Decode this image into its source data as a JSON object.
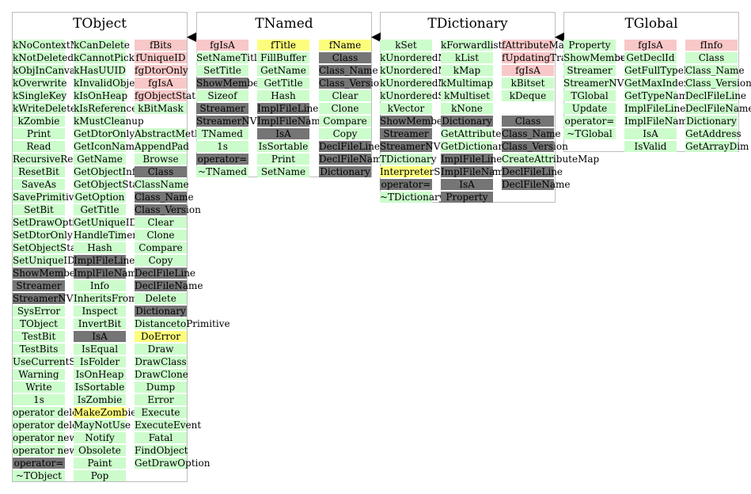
{
  "classes": [
    {
      "name": "TObject",
      "columns": [
        [
          {
            "t": "kNoContextMenu",
            "c": "green"
          },
          {
            "t": "kNotDeleted",
            "c": "green"
          },
          {
            "t": "kObjInCanvas",
            "c": "green"
          },
          {
            "t": "kOverwrite",
            "c": "green"
          },
          {
            "t": "kSingleKey",
            "c": "green"
          },
          {
            "t": "kWriteDelete",
            "c": "green"
          },
          {
            "t": "kZombie",
            "c": "green"
          },
          {
            "t": "Print",
            "c": "green"
          },
          {
            "t": "Read",
            "c": "green"
          },
          {
            "t": "RecursiveRemove",
            "c": "green"
          },
          {
            "t": "ResetBit",
            "c": "green"
          },
          {
            "t": "SaveAs",
            "c": "green"
          },
          {
            "t": "SavePrimitive",
            "c": "green"
          },
          {
            "t": "SetBit",
            "c": "green"
          },
          {
            "t": "SetDrawOption",
            "c": "green"
          },
          {
            "t": "SetDtorOnly",
            "c": "green"
          },
          {
            "t": "SetObjectStat",
            "c": "green"
          },
          {
            "t": "SetUniqueID",
            "c": "green"
          },
          {
            "t": "ShowMembers",
            "c": "gray"
          },
          {
            "t": "Streamer",
            "c": "gray"
          },
          {
            "t": "StreamerNVirtual",
            "c": "gray"
          },
          {
            "t": "SysError",
            "c": "green"
          },
          {
            "t": "TObject",
            "c": "green"
          },
          {
            "t": "TestBit",
            "c": "green"
          },
          {
            "t": "TestBits",
            "c": "green"
          },
          {
            "t": "UseCurrentStyle",
            "c": "green"
          },
          {
            "t": "Warning",
            "c": "green"
          },
          {
            "t": "Write",
            "c": "green"
          },
          {
            "t": "1s",
            "c": "green"
          },
          {
            "t": "operator delete",
            "c": "green"
          },
          {
            "t": "operator delete[]",
            "c": "green"
          },
          {
            "t": "operator new",
            "c": "green"
          },
          {
            "t": "operator new[]",
            "c": "green"
          },
          {
            "t": "operator=",
            "c": "gray"
          },
          {
            "t": "~TObject",
            "c": "green"
          }
        ],
        [
          {
            "t": "kCanDelete",
            "c": "green"
          },
          {
            "t": "kCannotPick",
            "c": "green"
          },
          {
            "t": "kHasUUID",
            "c": "green"
          },
          {
            "t": "kInvalidObject",
            "c": "green"
          },
          {
            "t": "kIsOnHeap",
            "c": "green"
          },
          {
            "t": "kIsReferenced",
            "c": "green"
          },
          {
            "t": "kMustCleanup",
            "c": "green"
          },
          {
            "t": "GetDtorOnly",
            "c": "green"
          },
          {
            "t": "GetIconName",
            "c": "green"
          },
          {
            "t": "GetName",
            "c": "green"
          },
          {
            "t": "GetObjectInfo",
            "c": "green"
          },
          {
            "t": "GetObjectStat",
            "c": "green"
          },
          {
            "t": "GetOption",
            "c": "green"
          },
          {
            "t": "GetTitle",
            "c": "green"
          },
          {
            "t": "GetUniqueID",
            "c": "green"
          },
          {
            "t": "HandleTimer",
            "c": "green"
          },
          {
            "t": "Hash",
            "c": "green"
          },
          {
            "t": "ImplFileLine",
            "c": "gray"
          },
          {
            "t": "ImplFileName",
            "c": "gray"
          },
          {
            "t": "Info",
            "c": "green"
          },
          {
            "t": "InheritsFrom",
            "c": "green"
          },
          {
            "t": "Inspect",
            "c": "green"
          },
          {
            "t": "InvertBit",
            "c": "green"
          },
          {
            "t": "IsA",
            "c": "gray"
          },
          {
            "t": "IsEqual",
            "c": "green"
          },
          {
            "t": "IsFolder",
            "c": "green"
          },
          {
            "t": "IsOnHeap",
            "c": "green"
          },
          {
            "t": "IsSortable",
            "c": "green"
          },
          {
            "t": "IsZombie",
            "c": "green"
          },
          {
            "t": "MakeZombie",
            "c": "yellow"
          },
          {
            "t": "MayNotUse",
            "c": "green"
          },
          {
            "t": "Notify",
            "c": "green"
          },
          {
            "t": "Obsolete",
            "c": "green"
          },
          {
            "t": "Paint",
            "c": "green"
          },
          {
            "t": "Pop",
            "c": "green"
          }
        ],
        [
          {
            "t": "fBits",
            "c": "pink"
          },
          {
            "t": "fUniqueID",
            "c": "pink"
          },
          {
            "t": "fgDtorOnly",
            "c": "pink"
          },
          {
            "t": "fgIsA",
            "c": "pink"
          },
          {
            "t": "fgObjectStat",
            "c": "pink"
          },
          {
            "t": "kBitMask",
            "c": "green"
          },
          {
            "t": "",
            "c": "none"
          },
          {
            "t": "AbstractMethod",
            "c": "green"
          },
          {
            "t": "AppendPad",
            "c": "green"
          },
          {
            "t": "Browse",
            "c": "green"
          },
          {
            "t": "Class",
            "c": "gray"
          },
          {
            "t": "ClassName",
            "c": "green"
          },
          {
            "t": "Class_Name",
            "c": "gray"
          },
          {
            "t": "Class_Version",
            "c": "gray"
          },
          {
            "t": "Clear",
            "c": "green"
          },
          {
            "t": "Clone",
            "c": "green"
          },
          {
            "t": "Compare",
            "c": "green"
          },
          {
            "t": "Copy",
            "c": "green"
          },
          {
            "t": "DeclFileLine",
            "c": "gray"
          },
          {
            "t": "DeclFileName",
            "c": "gray"
          },
          {
            "t": "Delete",
            "c": "green"
          },
          {
            "t": "Dictionary",
            "c": "gray"
          },
          {
            "t": "DistancetoPrimitive",
            "c": "green"
          },
          {
            "t": "DoError",
            "c": "yellow"
          },
          {
            "t": "Draw",
            "c": "green"
          },
          {
            "t": "DrawClass",
            "c": "green"
          },
          {
            "t": "DrawClone",
            "c": "green"
          },
          {
            "t": "Dump",
            "c": "green"
          },
          {
            "t": "Error",
            "c": "green"
          },
          {
            "t": "Execute",
            "c": "green"
          },
          {
            "t": "ExecuteEvent",
            "c": "green"
          },
          {
            "t": "Fatal",
            "c": "green"
          },
          {
            "t": "FindObject",
            "c": "green"
          },
          {
            "t": "GetDrawOption",
            "c": "green"
          }
        ]
      ]
    },
    {
      "name": "TNamed",
      "columns": [
        [
          {
            "t": "fgIsA",
            "c": "pink"
          },
          {
            "t": "SetNameTitle",
            "c": "green"
          },
          {
            "t": "SetTitle",
            "c": "green"
          },
          {
            "t": "ShowMembers",
            "c": "gray"
          },
          {
            "t": "Sizeof",
            "c": "green"
          },
          {
            "t": "Streamer",
            "c": "gray"
          },
          {
            "t": "StreamerNVirtual",
            "c": "gray"
          },
          {
            "t": "TNamed",
            "c": "green"
          },
          {
            "t": "1s",
            "c": "green"
          },
          {
            "t": "operator=",
            "c": "gray"
          },
          {
            "t": "~TNamed",
            "c": "green"
          }
        ],
        [
          {
            "t": "fTitle",
            "c": "yellow"
          },
          {
            "t": "FillBuffer",
            "c": "green"
          },
          {
            "t": "GetName",
            "c": "green"
          },
          {
            "t": "GetTitle",
            "c": "green"
          },
          {
            "t": "Hash",
            "c": "green"
          },
          {
            "t": "ImplFileLine",
            "c": "gray"
          },
          {
            "t": "ImplFileName",
            "c": "gray"
          },
          {
            "t": "IsA",
            "c": "gray"
          },
          {
            "t": "IsSortable",
            "c": "green"
          },
          {
            "t": "Print",
            "c": "green"
          },
          {
            "t": "SetName",
            "c": "green"
          }
        ],
        [
          {
            "t": "fName",
            "c": "yellow"
          },
          {
            "t": "Class",
            "c": "gray"
          },
          {
            "t": "Class_Name",
            "c": "gray"
          },
          {
            "t": "Class_Version",
            "c": "gray"
          },
          {
            "t": "Clear",
            "c": "green"
          },
          {
            "t": "Clone",
            "c": "green"
          },
          {
            "t": "Compare",
            "c": "green"
          },
          {
            "t": "Copy",
            "c": "green"
          },
          {
            "t": "DeclFileLine",
            "c": "gray"
          },
          {
            "t": "DeclFileName",
            "c": "gray"
          },
          {
            "t": "Dictionary",
            "c": "gray"
          }
        ]
      ]
    },
    {
      "name": "TDictionary",
      "columns": [
        [
          {
            "t": "kSet",
            "c": "green"
          },
          {
            "t": "kUnorderedMap",
            "c": "green"
          },
          {
            "t": "kUnorderedMultimap",
            "c": "green"
          },
          {
            "t": "kUnorderedMultiset",
            "c": "green"
          },
          {
            "t": "kUnorderedSet",
            "c": "green"
          },
          {
            "t": "kVector",
            "c": "green"
          },
          {
            "t": "ShowMembers",
            "c": "gray"
          },
          {
            "t": "Streamer",
            "c": "gray"
          },
          {
            "t": "StreamerNVirtual",
            "c": "gray"
          },
          {
            "t": "TDictionary",
            "c": "green"
          },
          {
            "t": "InterpreterStateMarker",
            "c": "yellow"
          },
          {
            "t": "operator=",
            "c": "gray"
          },
          {
            "t": "~TDictionary",
            "c": "green"
          }
        ],
        [
          {
            "t": "kForwardlist",
            "c": "green"
          },
          {
            "t": "kList",
            "c": "green"
          },
          {
            "t": "kMap",
            "c": "green"
          },
          {
            "t": "kMultimap",
            "c": "green"
          },
          {
            "t": "kMultiset",
            "c": "green"
          },
          {
            "t": "kNone",
            "c": "green"
          },
          {
            "t": "Dictionary",
            "c": "gray"
          },
          {
            "t": "GetAttributeMap",
            "c": "green"
          },
          {
            "t": "GetDictionary",
            "c": "green"
          },
          {
            "t": "ImplFileLine",
            "c": "gray"
          },
          {
            "t": "ImplFileName",
            "c": "gray"
          },
          {
            "t": "IsA",
            "c": "gray"
          },
          {
            "t": "Property",
            "c": "gray"
          }
        ],
        [
          {
            "t": "fAttributeMap",
            "c": "pink"
          },
          {
            "t": "fUpdatingTransactionCount",
            "c": "pink"
          },
          {
            "t": "fgIsA",
            "c": "pink"
          },
          {
            "t": "kBitset",
            "c": "green"
          },
          {
            "t": "kDeque",
            "c": "green"
          },
          {
            "t": "",
            "c": "none"
          },
          {
            "t": "Class",
            "c": "gray"
          },
          {
            "t": "Class_Name",
            "c": "gray"
          },
          {
            "t": "Class_Version",
            "c": "gray"
          },
          {
            "t": "CreateAttributeMap",
            "c": "green"
          },
          {
            "t": "DeclFileLine",
            "c": "gray"
          },
          {
            "t": "DeclFileName",
            "c": "gray"
          }
        ]
      ]
    },
    {
      "name": "TGlobal",
      "columns": [
        [
          {
            "t": "Property",
            "c": "green"
          },
          {
            "t": "ShowMembers",
            "c": "green"
          },
          {
            "t": "Streamer",
            "c": "green"
          },
          {
            "t": "StreamerNVirtual",
            "c": "green"
          },
          {
            "t": "TGlobal",
            "c": "green"
          },
          {
            "t": "Update",
            "c": "green"
          },
          {
            "t": "operator=",
            "c": "green"
          },
          {
            "t": "~TGlobal",
            "c": "green"
          }
        ],
        [
          {
            "t": "fgIsA",
            "c": "pink"
          },
          {
            "t": "GetDeclId",
            "c": "green"
          },
          {
            "t": "GetFullTypeName",
            "c": "green"
          },
          {
            "t": "GetMaxIndex",
            "c": "green"
          },
          {
            "t": "GetTypeName",
            "c": "green"
          },
          {
            "t": "ImplFileLine",
            "c": "green"
          },
          {
            "t": "ImplFileName",
            "c": "green"
          },
          {
            "t": "IsA",
            "c": "green"
          },
          {
            "t": "IsValid",
            "c": "green"
          }
        ],
        [
          {
            "t": "fInfo",
            "c": "pink"
          },
          {
            "t": "Class",
            "c": "green"
          },
          {
            "t": "Class_Name",
            "c": "green"
          },
          {
            "t": "Class_Version",
            "c": "green"
          },
          {
            "t": "DeclFileLine",
            "c": "green"
          },
          {
            "t": "DeclFileName",
            "c": "green"
          },
          {
            "t": "Dictionary",
            "c": "green"
          },
          {
            "t": "GetAddress",
            "c": "green"
          },
          {
            "t": "GetArrayDim",
            "c": "green"
          }
        ]
      ]
    }
  ]
}
